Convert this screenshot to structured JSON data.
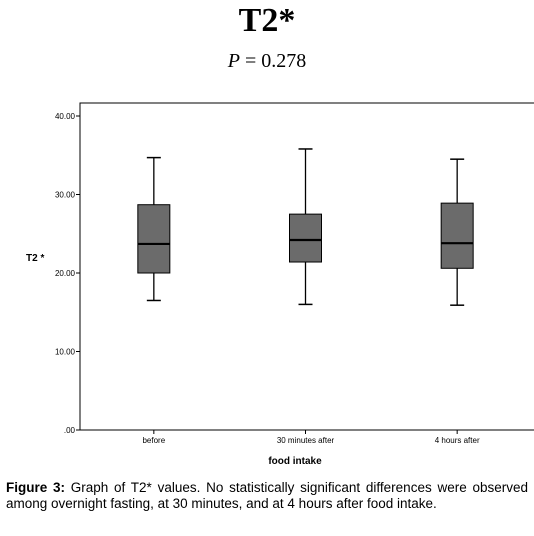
{
  "figure": {
    "title": "T2*",
    "subtitle_p": "P",
    "subtitle_rest": " = 0.278",
    "caption_label": "Figure 3:",
    "caption_text": " Graph of T2* values. No statistically significant differences were observed among overnight fasting, at 30 minutes, and at 4 hours after food intake."
  },
  "chart_data": {
    "type": "box",
    "title": "T2*",
    "xlabel": "food intake",
    "ylabel": "T2 *",
    "ylim": [
      0,
      43
    ],
    "y_ticks": [
      0,
      10,
      20,
      30,
      40
    ],
    "y_tick_labels": [
      ".00",
      "10.00",
      "20.00",
      "30.00",
      "40.00"
    ],
    "categories": [
      "before",
      "30 minutes after",
      "4 hours after"
    ],
    "boxes": [
      {
        "category": "before",
        "min": 16.5,
        "q1": 20.0,
        "median": 23.7,
        "q3": 28.7,
        "max": 34.7
      },
      {
        "category": "30 minutes after",
        "min": 16.0,
        "q1": 21.4,
        "median": 24.2,
        "q3": 27.5,
        "max": 35.8
      },
      {
        "category": "4 hours after",
        "min": 15.9,
        "q1": 20.6,
        "median": 23.8,
        "q3": 28.9,
        "max": 34.5
      }
    ],
    "box_color": "#6b6b6b",
    "grid": false
  }
}
